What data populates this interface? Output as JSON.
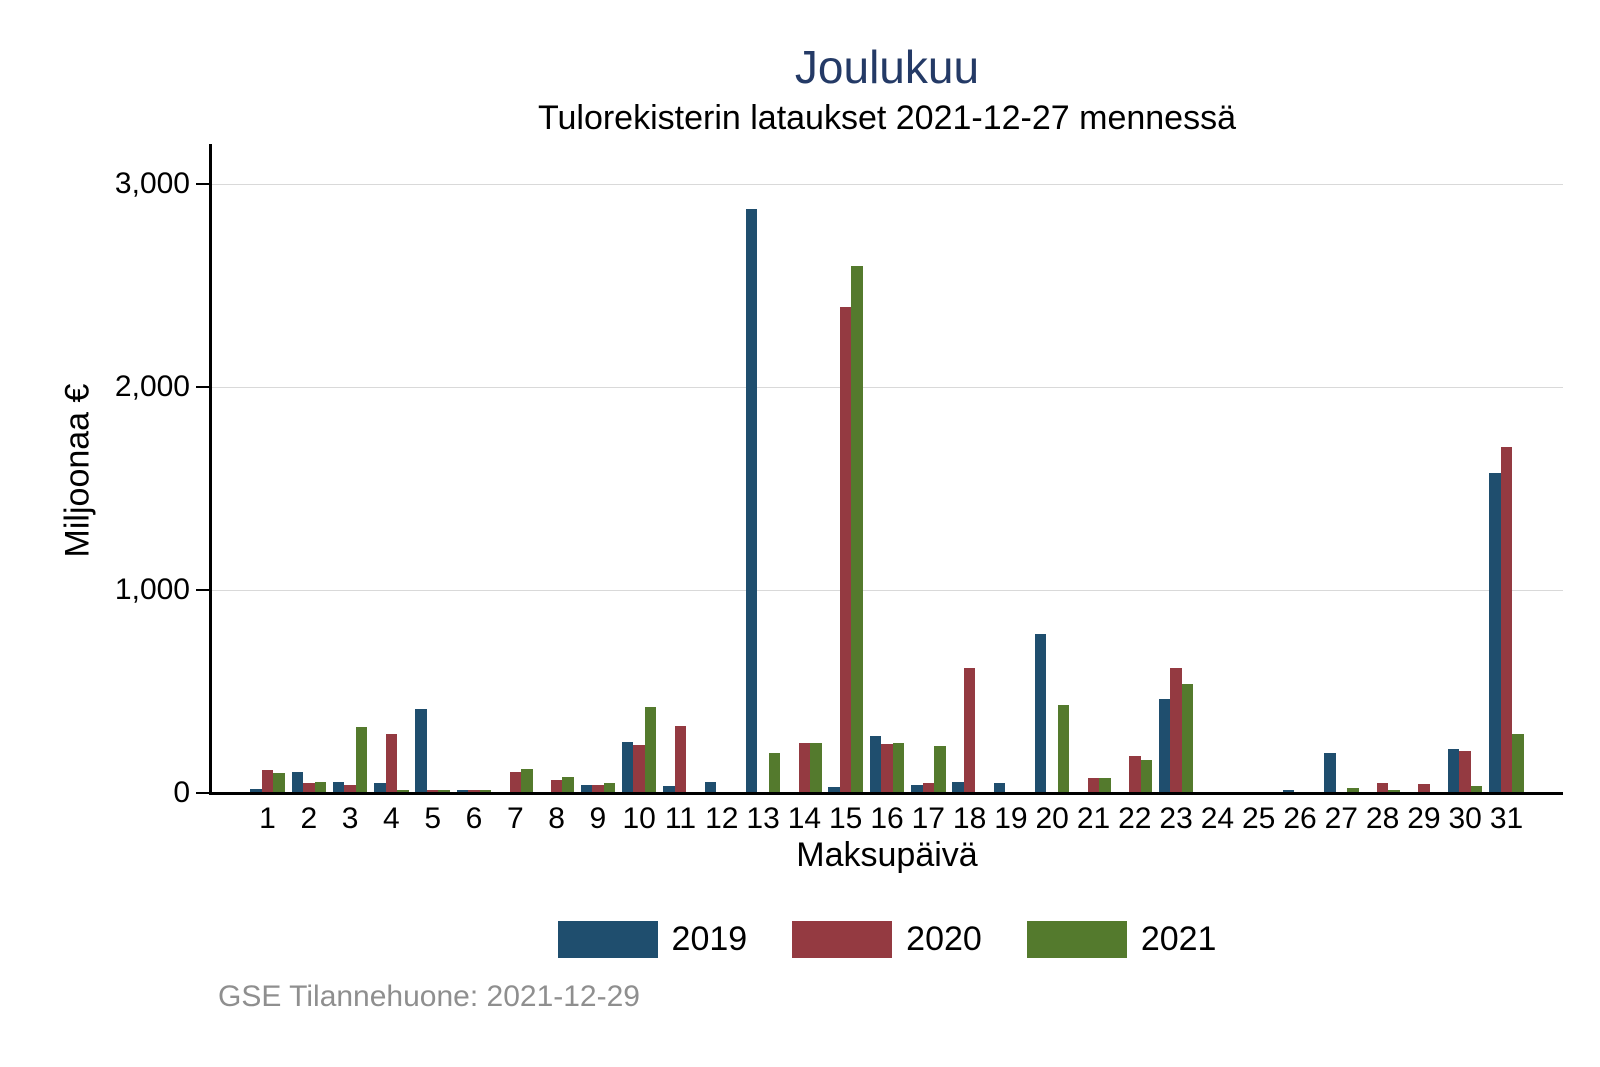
{
  "footer": {
    "text": "GSE Tilannehuone: 2021-12-29",
    "color": "#8f8f8f"
  },
  "chart_data": {
    "type": "bar",
    "title": "Joulukuu",
    "subtitle": "Tulorekisterin lataukset 2021-12-27 mennessä",
    "xlabel": "Maksupäivä",
    "ylabel": "Miljoonaa €",
    "ylim": [
      0,
      3000
    ],
    "grid": true,
    "legend_position": "bottom-center",
    "title_color": "#243a66",
    "grid_color": "#d9d9d9",
    "axis_color": "#000000",
    "y_tick_values": [
      0,
      1000,
      2000,
      3000
    ],
    "y_tick_labels": [
      "0",
      "1,000",
      "2,000",
      "3,000"
    ],
    "categories": [
      "1",
      "2",
      "3",
      "4",
      "5",
      "6",
      "7",
      "8",
      "9",
      "10",
      "11",
      "12",
      "13",
      "14",
      "15",
      "16",
      "17",
      "18",
      "19",
      "20",
      "21",
      "22",
      "23",
      "24",
      "25",
      "26",
      "27",
      "28",
      "29",
      "30",
      "31"
    ],
    "series": [
      {
        "name": "2019",
        "color": "#1f4e6e",
        "values": [
          15,
          100,
          50,
          45,
          410,
          4,
          0,
          0,
          35,
          245,
          30,
          50,
          2870,
          0,
          25,
          275,
          35,
          48,
          43,
          780,
          0,
          0,
          460,
          0,
          0,
          8,
          190,
          0,
          0,
          212,
          1570
        ]
      },
      {
        "name": "2020",
        "color": "#943a41",
        "values": [
          110,
          45,
          35,
          285,
          10,
          3,
          100,
          60,
          35,
          230,
          325,
          0,
          0,
          240,
          2390,
          235,
          46,
          610,
          0,
          0,
          68,
          175,
          610,
          0,
          0,
          0,
          0,
          44,
          38,
          200,
          1700
        ]
      },
      {
        "name": "2021",
        "color": "#547a2d",
        "values": [
          95,
          50,
          320,
          5,
          5,
          3,
          113,
          72,
          42,
          420,
          0,
          0,
          190,
          240,
          2590,
          240,
          225,
          0,
          0,
          430,
          68,
          160,
          530,
          0,
          0,
          0,
          22,
          11,
          0,
          31,
          285
        ]
      }
    ]
  }
}
